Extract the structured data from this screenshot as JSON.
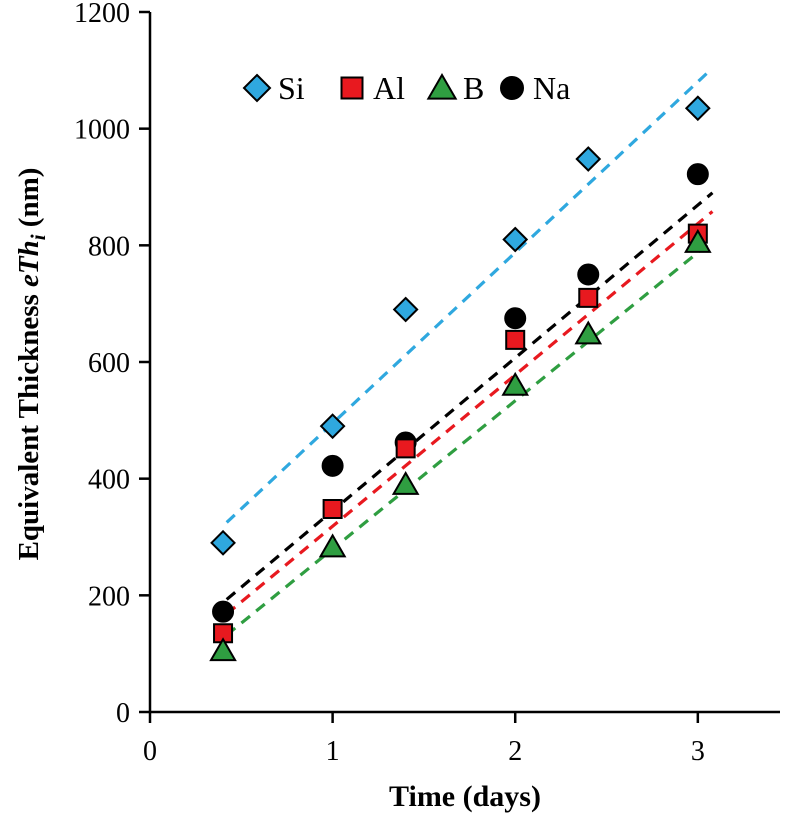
{
  "figure": {
    "background": "#FFFFFF"
  },
  "chart_data": {
    "type": "scatter",
    "title": "",
    "xlabel": "Time (days)",
    "ylabel": "Equivalent Thickness eThi (nm)",
    "ylabel_parts": {
      "prefix": "Equivalent Thickness ",
      "math": "eTh",
      "sub": "i",
      "suffix": " (nm)"
    },
    "xlim": [
      0,
      3.45
    ],
    "ylim": [
      0,
      1200
    ],
    "x_ticks": [
      0,
      1,
      2,
      3
    ],
    "y_ticks": [
      0,
      200,
      400,
      600,
      800,
      1000,
      1200
    ],
    "grid": false,
    "legend_position": "top-inside",
    "trend_style": "dashed",
    "series": [
      {
        "name": "Si",
        "marker": "diamond",
        "color": "#2FA8DF",
        "line_color": "#2FA8DF",
        "points": [
          [
            0.4,
            290
          ],
          [
            1,
            490
          ],
          [
            1.4,
            690
          ],
          [
            2,
            810
          ],
          [
            2.4,
            948
          ],
          [
            3,
            1035
          ]
        ],
        "trend": [
          [
            0.42,
            325
          ],
          [
            3.05,
            1095
          ]
        ]
      },
      {
        "name": "Al",
        "marker": "square",
        "color": "#E8191F",
        "line_color": "#E8191F",
        "points": [
          [
            0.4,
            135
          ],
          [
            1,
            348
          ],
          [
            1.4,
            452
          ],
          [
            2,
            638
          ],
          [
            2.4,
            710
          ],
          [
            3,
            820
          ]
        ],
        "trend": [
          [
            0.42,
            168
          ],
          [
            3.08,
            858
          ]
        ]
      },
      {
        "name": "B",
        "marker": "triangle",
        "color": "#2F9E41",
        "line_color": "#2F9E41",
        "points": [
          [
            0.4,
            105
          ],
          [
            1,
            283
          ],
          [
            1.4,
            390
          ],
          [
            2,
            560
          ],
          [
            2.4,
            648
          ],
          [
            3,
            805
          ]
        ],
        "trend": [
          [
            0.42,
            132
          ],
          [
            3.08,
            808
          ]
        ]
      },
      {
        "name": "Na",
        "marker": "circle",
        "color": "#000000",
        "line_color": "#000000",
        "points": [
          [
            0.4,
            172
          ],
          [
            1,
            422
          ],
          [
            1.4,
            462
          ],
          [
            2,
            675
          ],
          [
            2.4,
            750
          ],
          [
            3,
            922
          ]
        ],
        "trend": [
          [
            0.42,
            193
          ],
          [
            3.08,
            890
          ]
        ]
      }
    ]
  }
}
